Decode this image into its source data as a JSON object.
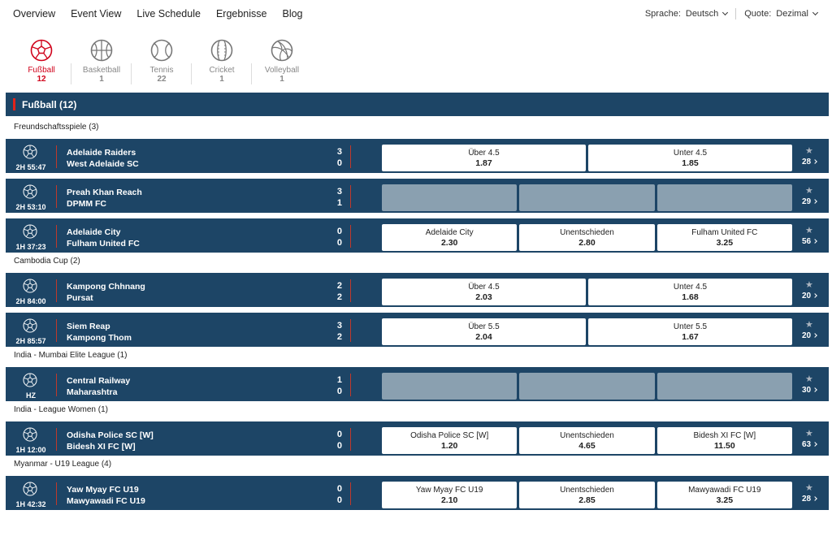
{
  "nav": {
    "links": [
      "Overview",
      "Event View",
      "Live Schedule",
      "Ergebnisse",
      "Blog"
    ],
    "language_label": "Sprache:",
    "language_value": "Deutsch",
    "odds_label": "Quote:",
    "odds_value": "Dezimal"
  },
  "sports": [
    {
      "name": "Fußball",
      "count": "12",
      "icon": "soccer-ball-icon",
      "active": true
    },
    {
      "name": "Basketball",
      "count": "1",
      "icon": "basketball-icon",
      "active": false
    },
    {
      "name": "Tennis",
      "count": "22",
      "icon": "tennis-ball-icon",
      "active": false
    },
    {
      "name": "Cricket",
      "count": "1",
      "icon": "cricket-ball-icon",
      "active": false
    },
    {
      "name": "Volleyball",
      "count": "1",
      "icon": "volleyball-icon",
      "active": false
    }
  ],
  "section_title": "Fußball (12)",
  "colors": {
    "header_bg": "#1d4566",
    "accent": "#e2231a",
    "locked": "#8aa0b0"
  },
  "leagues": [
    {
      "name": "Freundschaftsspiele (3)",
      "matches": [
        {
          "time": "2H 55:47",
          "home": "Adelaide Raiders",
          "away": "West Adelaide SC",
          "score_home": "3",
          "score_away": "0",
          "odds": [
            {
              "label": "Über 4.5",
              "value": "1.87"
            },
            {
              "label": "Unter 4.5",
              "value": "1.85"
            }
          ],
          "more": "28"
        },
        {
          "time": "2H 53:10",
          "home": "Preah Khan Reach",
          "away": "DPMM FC",
          "score_home": "3",
          "score_away": "1",
          "odds": [],
          "locked": true,
          "more": "29"
        },
        {
          "time": "1H 37:23",
          "home": "Adelaide City",
          "away": "Fulham United FC",
          "score_home": "0",
          "score_away": "0",
          "odds": [
            {
              "label": "Adelaide City",
              "value": "2.30"
            },
            {
              "label": "Unentschieden",
              "value": "2.80"
            },
            {
              "label": "Fulham United FC",
              "value": "3.25"
            }
          ],
          "more": "56"
        }
      ]
    },
    {
      "name": "Cambodia Cup (2)",
      "matches": [
        {
          "time": "2H 84:00",
          "home": "Kampong Chhnang",
          "away": "Pursat",
          "score_home": "2",
          "score_away": "2",
          "odds": [
            {
              "label": "Über 4.5",
              "value": "2.03"
            },
            {
              "label": "Unter 4.5",
              "value": "1.68"
            }
          ],
          "more": "20"
        },
        {
          "time": "2H 85:57",
          "home": "Siem Reap",
          "away": "Kampong Thom",
          "score_home": "3",
          "score_away": "2",
          "odds": [
            {
              "label": "Über 5.5",
              "value": "2.04"
            },
            {
              "label": "Unter 5.5",
              "value": "1.67"
            }
          ],
          "more": "20"
        }
      ]
    },
    {
      "name": "India - Mumbai Elite League (1)",
      "matches": [
        {
          "time": "HZ",
          "home": "Central Railway",
          "away": "Maharashtra",
          "score_home": "1",
          "score_away": "0",
          "odds": [],
          "locked": true,
          "more": "30"
        }
      ]
    },
    {
      "name": "India - League Women (1)",
      "matches": [
        {
          "time": "1H 12:00",
          "home": "Odisha Police SC [W]",
          "away": "Bidesh XI FC [W]",
          "score_home": "0",
          "score_away": "0",
          "odds": [
            {
              "label": "Odisha Police SC [W]",
              "value": "1.20"
            },
            {
              "label": "Unentschieden",
              "value": "4.65"
            },
            {
              "label": "Bidesh XI FC [W]",
              "value": "11.50"
            }
          ],
          "more": "63"
        }
      ]
    },
    {
      "name": "Myanmar - U19 League (4)",
      "matches": [
        {
          "time": "1H 42:32",
          "home": "Yaw Myay FC U19",
          "away": "Mawyawadi FC U19",
          "score_home": "0",
          "score_away": "0",
          "odds": [
            {
              "label": "Yaw Myay FC U19",
              "value": "2.10"
            },
            {
              "label": "Unentschieden",
              "value": "2.85"
            },
            {
              "label": "Mawyawadi FC U19",
              "value": "3.25"
            }
          ],
          "more": "28"
        }
      ]
    }
  ]
}
